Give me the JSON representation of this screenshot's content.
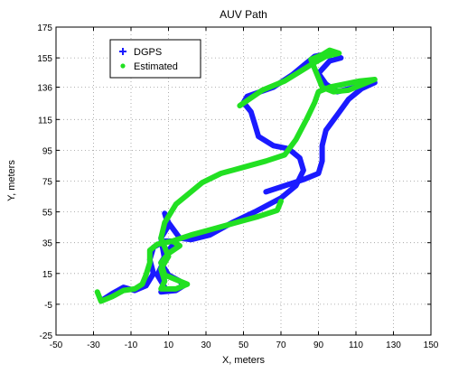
{
  "chart_data": {
    "type": "line",
    "title": "AUV Path",
    "xlabel": "X, meters",
    "ylabel": "Y, meters",
    "xlim": [
      -50,
      150
    ],
    "ylim": [
      -25,
      175
    ],
    "xticks": [
      -50,
      -30,
      -10,
      10,
      30,
      50,
      70,
      90,
      110,
      130,
      150
    ],
    "yticks": [
      -25,
      -5,
      15,
      35,
      55,
      75,
      95,
      115,
      136,
      155,
      175
    ],
    "grid": true,
    "legend_position": "top-left",
    "series": [
      {
        "name": "DGPS",
        "color": "#1a1aff",
        "marker": "+",
        "points": [
          [
            -25,
            -2
          ],
          [
            -20,
            2
          ],
          [
            -14,
            6
          ],
          [
            -8,
            4
          ],
          [
            -2,
            7
          ],
          [
            2,
            15
          ],
          [
            0,
            24
          ],
          [
            2,
            32
          ],
          [
            8,
            36
          ],
          [
            14,
            36
          ],
          [
            10,
            30
          ],
          [
            6,
            22
          ],
          [
            10,
            14
          ],
          [
            16,
            10
          ],
          [
            18,
            7
          ],
          [
            14,
            4
          ],
          [
            6,
            3
          ],
          [
            8,
            6
          ],
          [
            4,
            14
          ],
          [
            8,
            24
          ],
          [
            6,
            38
          ],
          [
            10,
            46
          ],
          [
            8,
            54
          ],
          [
            10,
            48
          ],
          [
            16,
            38
          ],
          [
            22,
            37
          ],
          [
            32,
            40
          ],
          [
            44,
            48
          ],
          [
            56,
            55
          ],
          [
            70,
            64
          ],
          [
            78,
            72
          ],
          [
            82,
            82
          ],
          [
            80,
            90
          ],
          [
            74,
            96
          ],
          [
            66,
            98
          ],
          [
            58,
            104
          ],
          [
            56,
            112
          ],
          [
            54,
            120
          ],
          [
            50,
            126
          ],
          [
            52,
            130
          ],
          [
            66,
            136
          ],
          [
            76,
            144
          ],
          [
            82,
            150
          ],
          [
            88,
            156
          ],
          [
            96,
            158
          ],
          [
            102,
            155
          ],
          [
            96,
            153
          ],
          [
            90,
            145
          ],
          [
            94,
            138
          ],
          [
            100,
            133
          ],
          [
            110,
            136
          ],
          [
            120,
            139
          ],
          [
            113,
            135
          ],
          [
            106,
            128
          ],
          [
            100,
            118
          ],
          [
            94,
            108
          ],
          [
            92,
            98
          ],
          [
            92,
            88
          ],
          [
            90,
            80
          ],
          [
            82,
            76
          ],
          [
            72,
            72
          ],
          [
            62,
            68
          ]
        ]
      },
      {
        "name": "Estimated",
        "color": "#22e022",
        "marker": ".",
        "points": [
          [
            -28,
            3
          ],
          [
            -26,
            -3
          ],
          [
            -20,
            0
          ],
          [
            -14,
            4
          ],
          [
            -8,
            5
          ],
          [
            -4,
            8
          ],
          [
            -2,
            14
          ],
          [
            0,
            22
          ],
          [
            0,
            30
          ],
          [
            4,
            34
          ],
          [
            12,
            36
          ],
          [
            16,
            33
          ],
          [
            10,
            28
          ],
          [
            6,
            22
          ],
          [
            8,
            14
          ],
          [
            16,
            10
          ],
          [
            20,
            8
          ],
          [
            14,
            5
          ],
          [
            6,
            5
          ],
          [
            8,
            10
          ],
          [
            6,
            18
          ],
          [
            10,
            26
          ],
          [
            6,
            38
          ],
          [
            8,
            48
          ],
          [
            10,
            52
          ],
          [
            14,
            60
          ],
          [
            20,
            66
          ],
          [
            28,
            74
          ],
          [
            38,
            80
          ],
          [
            50,
            84
          ],
          [
            62,
            88
          ],
          [
            72,
            92
          ],
          [
            78,
            102
          ],
          [
            84,
            116
          ],
          [
            88,
            126
          ],
          [
            90,
            133
          ],
          [
            96,
            136
          ],
          [
            104,
            138
          ],
          [
            112,
            140
          ],
          [
            120,
            141
          ],
          [
            114,
            138
          ],
          [
            106,
            134
          ],
          [
            98,
            133
          ],
          [
            92,
            136
          ],
          [
            90,
            142
          ],
          [
            88,
            148
          ],
          [
            86,
            154
          ],
          [
            92,
            157
          ],
          [
            96,
            160
          ],
          [
            101,
            158
          ],
          [
            94,
            156
          ],
          [
            88,
            152
          ],
          [
            80,
            146
          ],
          [
            72,
            140
          ],
          [
            60,
            134
          ],
          [
            48,
            124
          ]
        ]
      },
      {
        "name": "",
        "color": "#22e022",
        "marker": ".",
        "points": [
          [
            12,
            36
          ],
          [
            22,
            40
          ],
          [
            34,
            44
          ],
          [
            46,
            48
          ],
          [
            58,
            52
          ],
          [
            68,
            56
          ],
          [
            70,
            62
          ]
        ]
      }
    ]
  }
}
